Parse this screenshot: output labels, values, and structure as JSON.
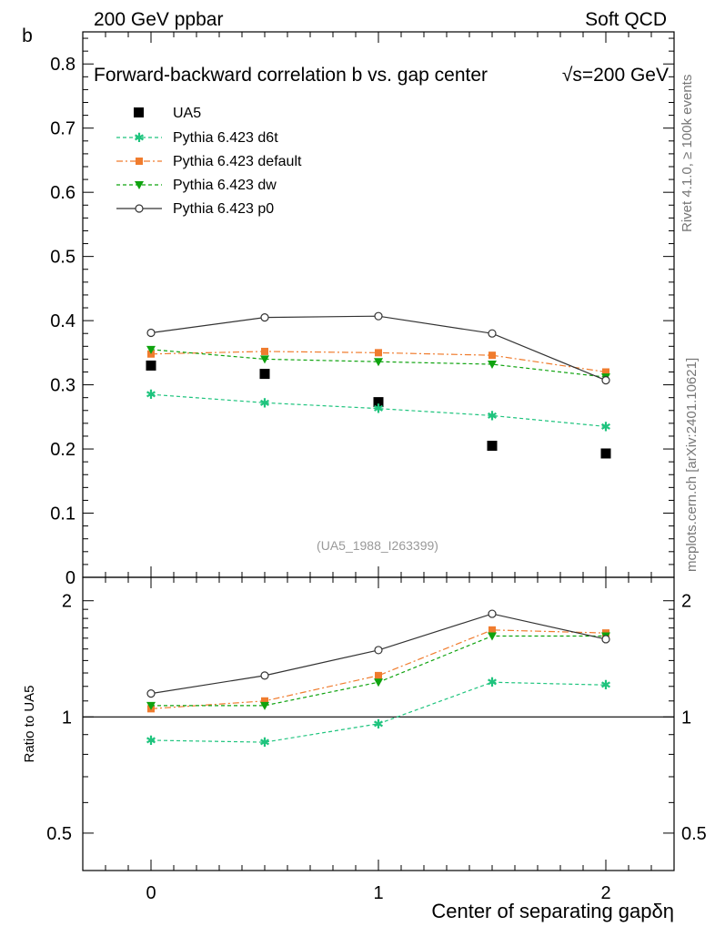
{
  "header": {
    "left": "200 GeV ppbar",
    "right": "Soft QCD"
  },
  "side_labels": {
    "rivet": "Rivet 4.1.0, ≥ 100k events",
    "mcplots": "mcplots.cern.ch [arXiv:2401.10621]"
  },
  "colors": {
    "ua5": "#000000",
    "d6t": "#1fc47e",
    "default": "#f07c2e",
    "dw": "#0fa30f",
    "p0": "#333333"
  },
  "chart_data": [
    {
      "type": "line",
      "title": "Forward-backward correlation b  vs. gap center",
      "title_suffix": "√s=200 GeV",
      "ylabel": "b",
      "xlabel": "",
      "xlim": [
        -0.3,
        2.3
      ],
      "ylim": [
        0,
        0.85
      ],
      "yticks": [
        0,
        0.1,
        0.2,
        0.3,
        0.4,
        0.5,
        0.6,
        0.7,
        0.8
      ],
      "ytick_labels": [
        "0",
        "0.1",
        "0.2",
        "0.3",
        "0.4",
        "0.5",
        "0.6",
        "0.7",
        "0.8"
      ],
      "x": [
        0,
        0.5,
        1,
        1.5,
        2
      ],
      "watermark": "(UA5_1988_I263399)",
      "series": [
        {
          "name": "UA5",
          "key": "ua5",
          "style": "square-marker",
          "values": [
            0.33,
            0.317,
            0.273,
            0.205,
            0.193
          ]
        },
        {
          "name": "Pythia 6.423 d6t",
          "key": "d6t",
          "style": "star-dashed",
          "values": [
            0.285,
            0.272,
            0.263,
            0.252,
            0.235
          ]
        },
        {
          "name": "Pythia 6.423 default",
          "key": "default",
          "style": "square-dashdot",
          "values": [
            0.348,
            0.352,
            0.35,
            0.346,
            0.32
          ]
        },
        {
          "name": "Pythia 6.423 dw",
          "key": "dw",
          "style": "triangle-dashed",
          "values": [
            0.355,
            0.34,
            0.336,
            0.332,
            0.312
          ]
        },
        {
          "name": "Pythia 6.423 p0",
          "key": "p0",
          "style": "circle-solid",
          "values": [
            0.381,
            0.405,
            0.407,
            0.38,
            0.307
          ]
        }
      ]
    },
    {
      "type": "line",
      "ylabel": "Ratio to UA5",
      "xlabel": "Center of separating gapδη",
      "xlim": [
        -0.3,
        2.3
      ],
      "ylim": [
        0.4,
        2.3
      ],
      "yscale": "log",
      "yticks": [
        0.5,
        1,
        2
      ],
      "ytick_labels": [
        "0.5",
        "1",
        "2"
      ],
      "xticks": [
        0,
        1,
        2
      ],
      "xtick_labels": [
        "0",
        "1",
        "2"
      ],
      "x": [
        0,
        0.5,
        1,
        1.5,
        2
      ],
      "reference_line": 1,
      "series": [
        {
          "name": "Pythia 6.423 d6t",
          "key": "d6t",
          "style": "star-dashed",
          "values": [
            0.87,
            0.86,
            0.96,
            1.23,
            1.21
          ]
        },
        {
          "name": "Pythia 6.423 default",
          "key": "default",
          "style": "square-dashdot",
          "values": [
            1.05,
            1.1,
            1.28,
            1.68,
            1.65
          ]
        },
        {
          "name": "Pythia 6.423 dw",
          "key": "dw",
          "style": "triangle-dashed",
          "values": [
            1.07,
            1.07,
            1.23,
            1.62,
            1.62
          ]
        },
        {
          "name": "Pythia 6.423 p0",
          "key": "p0",
          "style": "circle-solid",
          "values": [
            1.15,
            1.28,
            1.49,
            1.85,
            1.59
          ]
        }
      ]
    }
  ]
}
